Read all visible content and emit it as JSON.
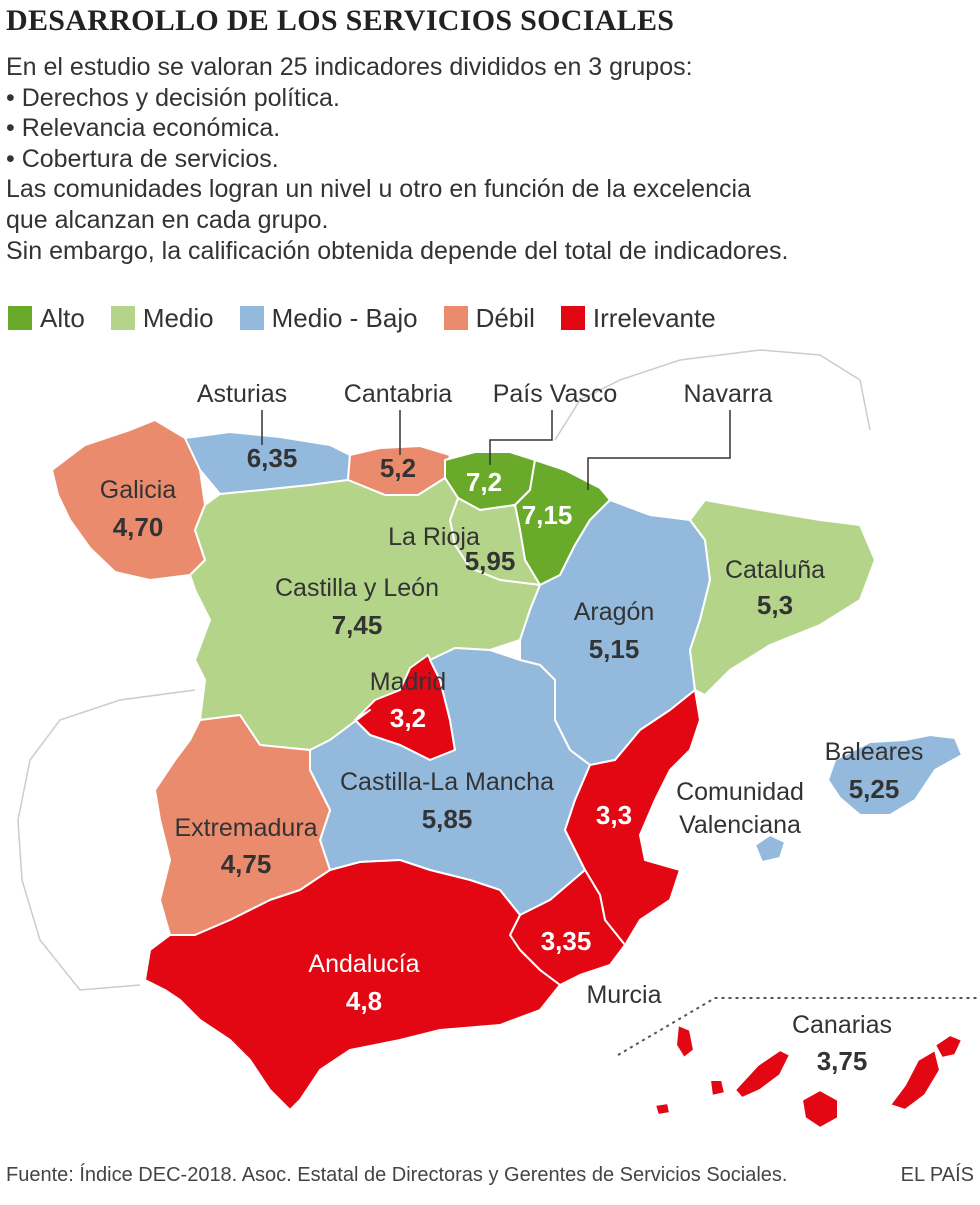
{
  "title": "DESARROLLO DE LOS SERVICIOS SOCIALES",
  "intro": {
    "lines": [
      "En el estudio se valoran 25 indicadores divididos en 3 grupos:",
      "• Derechos y decisión política.",
      "• Relevancia económica.",
      "• Cobertura de servicios.",
      "Las comunidades logran un nivel u otro en función de la excelencia",
      "que alcanzan en cada grupo.",
      "Sin embargo, la calificación obtenida depende del total de indicadores."
    ]
  },
  "legend": [
    {
      "label": "Alto",
      "color": "#6aaa2b"
    },
    {
      "label": "Medio",
      "color": "#b4d48a"
    },
    {
      "label": "Medio - Bajo",
      "color": "#93b9dc"
    },
    {
      "label": "Débil",
      "color": "#ea8b6e"
    },
    {
      "label": "Irrelevante",
      "color": "#e30613"
    }
  ],
  "regions": {
    "galicia": {
      "name": "Galicia",
      "value": "4,70",
      "level": "Débil"
    },
    "asturias": {
      "name": "Asturias",
      "value": "6,35",
      "level": "Medio - Bajo"
    },
    "cantabria": {
      "name": "Cantabria",
      "value": "5,2",
      "level": "Débil"
    },
    "pais_vasco": {
      "name": "País Vasco",
      "value": "7,2",
      "level": "Alto"
    },
    "navarra": {
      "name": "Navarra",
      "value": "7,15",
      "level": "Alto"
    },
    "la_rioja": {
      "name": "La Rioja",
      "value": "5,95",
      "level": "Medio"
    },
    "castilla_leon": {
      "name": "Castilla y León",
      "value": "7,45",
      "level": "Medio"
    },
    "aragon": {
      "name": "Aragón",
      "value": "5,15",
      "level": "Medio - Bajo"
    },
    "cataluna": {
      "name": "Cataluña",
      "value": "5,3",
      "level": "Medio"
    },
    "madrid": {
      "name": "Madrid",
      "value": "3,2",
      "level": "Irrelevante"
    },
    "castilla_la_mancha": {
      "name": "Castilla-La Mancha",
      "value": "5,85",
      "level": "Medio - Bajo"
    },
    "extremadura": {
      "name": "Extremadura",
      "value": "4,75",
      "level": "Débil"
    },
    "comunidad_valenciana": {
      "name_line1": "Comunidad",
      "name_line2": "Valenciana",
      "value": "3,3",
      "level": "Irrelevante"
    },
    "baleares": {
      "name": "Baleares",
      "value": "5,25",
      "level": "Medio - Bajo"
    },
    "murcia": {
      "name": "Murcia",
      "value": "3,35",
      "level": "Irrelevante"
    },
    "andalucia": {
      "name": "Andalucía",
      "value": "4,8",
      "level": "Irrelevante"
    },
    "canarias": {
      "name": "Canarias",
      "value": "3,75",
      "level": "Irrelevante"
    }
  },
  "footer": {
    "source": "Fuente: Índice DEC-2018. Asoc. Estatal de Directoras y Gerentes de Servicios Sociales.",
    "brand": "EL PAÍS"
  }
}
